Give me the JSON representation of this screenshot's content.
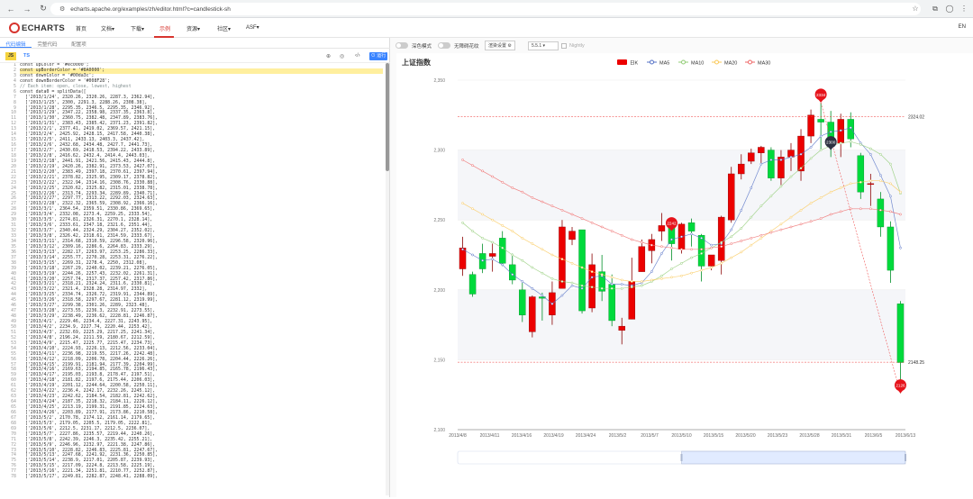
{
  "browser": {
    "url": "echarts.apache.org/examples/zh/editor.html?c=candlestick-sh"
  },
  "nav": {
    "logo": "ECHARTS",
    "items": [
      "首页",
      "文档▾",
      "下载▾",
      "示例",
      "资源▾",
      "社区▾",
      "ASF▾"
    ],
    "lang": "EN"
  },
  "editor": {
    "tabs": [
      "代码编辑",
      "完整代码",
      "配置项"
    ],
    "lang_js": "JS",
    "lang_ts": "TS",
    "run_label": "运行",
    "lines": [
      "const upColor = '#ec0000';",
      "const upBorderColor = '#8A0000';",
      "const downColor = '#00da3c';",
      "const downBorderColor = '#008F28';",
      "// Each item: open, close, lowest, highest",
      "const data0 = splitData([",
      "  ['2013/1/24', 2320.26, 2320.26, 2287.3, 2362.94],",
      "  ['2013/1/25', 2300, 2291.3, 2288.26, 2308.38],",
      "  ['2013/1/28', 2295.35, 2346.5, 2295.35, 2346.92],",
      "  ['2013/1/29', 2347.22, 2358.98, 2337.35, 2363.8],",
      "  ['2013/1/30', 2360.75, 2382.48, 2347.89, 2383.76],",
      "  ['2013/1/31', 2383.43, 2385.42, 2371.23, 2391.82],",
      "  ['2013/2/1', 2377.41, 2419.02, 2369.57, 2421.15],",
      "  ['2013/2/4', 2425.92, 2428.15, 2417.58, 2440.38],",
      "  ['2013/2/5', 2411, 2433.13, 2403.3, 2437.42],",
      "  ['2013/2/6', 2432.68, 2434.48, 2427.7, 2441.73],",
      "  ['2013/2/7', 2430.69, 2418.53, 2394.22, 2433.89],",
      "  ['2013/2/8', 2416.62, 2432.4, 2414.4, 2443.03],",
      "  ['2013/2/18', 2441.91, 2421.56, 2415.43, 2444.8],",
      "  ['2013/2/19', 2420.26, 2382.91, 2373.53, 2427.07],",
      "  ['2013/2/20', 2383.49, 2397.18, 2370.61, 2397.94],",
      "  ['2013/2/21', 2378.82, 2325.95, 2309.17, 2378.82],",
      "  ['2013/2/22', 2322.94, 2314.16, 2308.76, 2330.88],",
      "  ['2013/2/25', 2320.62, 2325.82, 2315.01, 2338.78],",
      "  ['2013/2/26', 2313.74, 2293.34, 2289.89, 2340.71],",
      "  ['2013/2/27', 2297.77, 2313.22, 2292.03, 2324.63],",
      "  ['2013/2/28', 2322.32, 2365.59, 2308.92, 2366.16],",
      "  ['2013/3/1', 2364.54, 2359.51, 2330.86, 2369.65],",
      "  ['2013/3/4', 2332.08, 2273.4, 2259.25, 2333.54],",
      "  ['2013/3/5', 2274.81, 2326.31, 2270.1, 2328.14],",
      "  ['2013/3/6', 2333.61, 2347.18, 2321.6, 2351.44],",
      "  ['2013/3/7', 2340.44, 2324.29, 2304.27, 2352.02],",
      "  ['2013/3/8', 2326.42, 2318.61, 2314.59, 2333.67],",
      "  ['2013/3/11', 2314.68, 2310.59, 2296.58, 2320.96],",
      "  ['2013/3/12', 2309.16, 2286.6, 2264.83, 2333.29],",
      "  ['2013/3/13', 2282.17, 2263.97, 2253.25, 2286.33],",
      "  ['2013/3/14', 2255.77, 2270.28, 2253.31, 2276.22],",
      "  ['2013/3/15', 2269.31, 2278.4, 2250, 2312.08],",
      "  ['2013/3/18', 2267.29, 2240.02, 2239.21, 2276.05],",
      "  ['2013/3/19', 2244.26, 2257.43, 2232.02, 2261.31],",
      "  ['2013/3/20', 2257.74, 2317.37, 2257.42, 2317.86],",
      "  ['2013/3/21', 2318.21, 2324.24, 2311.6, 2330.81],",
      "  ['2013/3/22', 2321.4, 2328.28, 2314.97, 2332],",
      "  ['2013/3/25', 2334.74, 2326.72, 2319.91, 2344.89],",
      "  ['2013/3/26', 2318.58, 2297.67, 2281.12, 2319.99],",
      "  ['2013/3/27', 2299.38, 2301.26, 2289, 2323.48],",
      "  ['2013/3/28', 2273.55, 2236.3, 2232.91, 2273.55],",
      "  ['2013/3/29', 2238.49, 2236.62, 2228.81, 2246.87],",
      "  ['2013/4/1', 2229.46, 2234.4, 2227.31, 2243.95],",
      "  ['2013/4/2', 2234.9, 2227.74, 2220.44, 2253.42],",
      "  ['2013/4/3', 2232.69, 2225.29, 2217.25, 2241.34],",
      "  ['2013/4/8', 2196.24, 2211.59, 2180.67, 2212.59],",
      "  ['2013/4/9', 2215.47, 2225.77, 2215.47, 2234.73],",
      "  ['2013/4/10', 2224.93, 2226.13, 2212.56, 2233.04],",
      "  ['2013/4/11', 2236.98, 2219.55, 2217.26, 2242.48],",
      "  ['2013/4/12', 2218.09, 2206.78, 2204.44, 2226.26],",
      "  ['2013/4/15', 2199.91, 2181.94, 2177.39, 2204.99],",
      "  ['2013/4/16', 2169.63, 2194.85, 2165.78, 2196.43],",
      "  ['2013/4/17', 2195.03, 2193.8, 2178.47, 2197.51],",
      "  ['2013/4/18', 2181.82, 2197.6, 2175.44, 2206.03],",
      "  ['2013/4/19', 2201.12, 2244.64, 2200.58, 2250.11],",
      "  ['2013/4/22', 2236.4, 2242.17, 2232.26, 2245.12],",
      "  ['2013/4/23', 2242.62, 2184.54, 2182.81, 2242.62],",
      "  ['2013/4/24', 2187.35, 2218.32, 2184.11, 2226.12],",
      "  ['2013/4/25', 2213.19, 2199.31, 2191.85, 2224.63],",
      "  ['2013/4/26', 2203.89, 2177.91, 2173.86, 2210.58],",
      "  ['2013/5/2', 2170.78, 2174.12, 2161.14, 2179.65],",
      "  ['2013/5/3', 2179.05, 2205.5, 2179.05, 2222.81],",
      "  ['2013/5/6', 2212.5, 2231.17, 2212.5, 2236.07],",
      "  ['2013/5/7', 2227.86, 2235.57, 2219.44, 2240.26],",
      "  ['2013/5/8', 2242.39, 2246.3, 2235.42, 2255.21],",
      "  ['2013/5/9', 2246.96, 2232.97, 2221.38, 2247.86],",
      "  ['2013/5/10', 2228.82, 2246.83, 2225.81, 2247.67],",
      "  ['2013/5/13', 2247.68, 2241.92, 2231.36, 2250.85],",
      "  ['2013/5/14', 2238.9, 2217.01, 2205.87, 2239.93],",
      "  ['2013/5/15', 2217.09, 2224.8, 2213.58, 2225.19],",
      "  ['2013/5/16', 2221.34, 2251.81, 2210.77, 2252.87],",
      "  ['2013/5/17', 2249.81, 2282.87, 2248.41, 2288.09],"
    ]
  },
  "controls": {
    "dark_mode": "深色模式",
    "no_animation": "无障碍花纹",
    "render": "渲染设置 ⚙",
    "version": "5.5.1 ▾",
    "nightly": "Nightly"
  },
  "chart_data": {
    "type": "candlestick",
    "title": "上证指数",
    "legend": [
      "日K",
      "MA5",
      "MA10",
      "MA20",
      "MA30"
    ],
    "colors": {
      "up": "#ec0000",
      "down": "#00da3c",
      "ma5": "#5470c6",
      "ma10": "#91cc75",
      "ma20": "#fac858",
      "ma30": "#ee6666"
    },
    "ylim": [
      2100,
      2350
    ],
    "yticks": [
      2100,
      2150,
      2200,
      2250,
      2300,
      2350
    ],
    "xticks": [
      "2013/4/8",
      "2013/4/11",
      "2013/4/16",
      "2013/4/19",
      "2013/4/24",
      "2013/5/2",
      "2013/5/7",
      "2013/5/10",
      "2013/5/15",
      "2013/5/20",
      "2013/5/23",
      "2013/5/28",
      "2013/5/31",
      "2013/6/5",
      "2013/6/13"
    ],
    "candles": [
      [
        2215,
        2230,
        2210,
        2238
      ],
      [
        2211,
        2197,
        2195,
        2213
      ],
      [
        2226,
        2215,
        2212,
        2233
      ],
      [
        2224,
        2226,
        2213,
        2233
      ],
      [
        2237,
        2219,
        2217,
        2242
      ],
      [
        2218,
        2207,
        2204,
        2226
      ],
      [
        2200,
        2182,
        2177,
        2205
      ],
      [
        2170,
        2195,
        2166,
        2196
      ],
      [
        2195,
        2194,
        2178,
        2198
      ],
      [
        2182,
        2198,
        2175,
        2206
      ],
      [
        2201,
        2245,
        2201,
        2250
      ],
      [
        2236,
        2242,
        2232,
        2245
      ],
      [
        2243,
        2185,
        2183,
        2243
      ],
      [
        2187,
        2218,
        2184,
        2226
      ],
      [
        2213,
        2199,
        2192,
        2225
      ],
      [
        2204,
        2178,
        2174,
        2211
      ],
      [
        2171,
        2174,
        2161,
        2180
      ],
      [
        2179,
        2206,
        2179,
        2223
      ],
      [
        2213,
        2231,
        2213,
        2236
      ],
      [
        2228,
        2236,
        2219,
        2240
      ],
      [
        2242,
        2246,
        2235,
        2255
      ],
      [
        2247,
        2233,
        2221,
        2248
      ],
      [
        2229,
        2247,
        2226,
        2248
      ],
      [
        2248,
        2242,
        2231,
        2251
      ],
      [
        2239,
        2217,
        2206,
        2240
      ],
      [
        2217,
        2225,
        2214,
        2225
      ],
      [
        2221,
        2252,
        2211,
        2253
      ],
      [
        2250,
        2283,
        2248,
        2288
      ],
      [
        2283,
        2290,
        2279,
        2297
      ],
      [
        2292,
        2298,
        2290,
        2301
      ],
      [
        2298,
        2302,
        2290,
        2303
      ],
      [
        2300,
        2280,
        2278,
        2302
      ],
      [
        2280,
        2295,
        2275,
        2300
      ],
      [
        2295,
        2300,
        2285,
        2305
      ],
      [
        2285,
        2310,
        2278,
        2315
      ],
      [
        2310,
        2325,
        2305,
        2329
      ],
      [
        2322,
        2320,
        2300,
        2334
      ],
      [
        2320,
        2304,
        2295,
        2328
      ],
      [
        2305,
        2322,
        2295,
        2326
      ],
      [
        2322,
        2308,
        2302,
        2327
      ],
      [
        2296,
        2270,
        2265,
        2298
      ],
      [
        2276,
        2276,
        2260,
        2283
      ],
      [
        2265,
        2245,
        2238,
        2270
      ],
      [
        2245,
        2214,
        2205,
        2249
      ],
      [
        2190,
        2148,
        2126,
        2192
      ]
    ],
    "mark_points": [
      {
        "label": "2334",
        "value": 2334
      },
      {
        "label": "2300",
        "value": 2300
      },
      {
        "label": "2242",
        "value": 2242
      },
      {
        "label": "2126",
        "value": 2126
      }
    ],
    "mark_lines": [
      {
        "label": "2324.02",
        "value": 2324.02
      },
      {
        "label": "2148.25",
        "value": 2148.25
      }
    ],
    "ma5": [
      2229,
      2225,
      2221,
      2222,
      2218,
      2211,
      2206,
      2201,
      2196,
      2190,
      2196,
      2203,
      2201,
      2209,
      2210,
      2204,
      2204,
      2203,
      2205,
      2213,
      2226,
      2236,
      2238,
      2240,
      2237,
      2232,
      2233,
      2243,
      2257,
      2273,
      2290,
      2293,
      2293,
      2295,
      2297,
      2302,
      2310,
      2313,
      2314,
      2316,
      2305,
      2297,
      2282,
      2267,
      2230
    ],
    "ma10": [
      2248,
      2242,
      2237,
      2234,
      2230,
      2225,
      2221,
      2216,
      2212,
      2208,
      2206,
      2205,
      2203,
      2202,
      2201,
      2201,
      2201,
      2202,
      2203,
      2206,
      2210,
      2215,
      2219,
      2223,
      2226,
      2230,
      2234,
      2238,
      2244,
      2252,
      2260,
      2267,
      2274,
      2281,
      2287,
      2294,
      2300,
      2303,
      2305,
      2306,
      2304,
      2301,
      2297,
      2290,
      2269
    ],
    "ma20": [
      2262,
      2258,
      2254,
      2250,
      2246,
      2242,
      2237,
      2233,
      2229,
      2225,
      2222,
      2219,
      2216,
      2213,
      2211,
      2209,
      2207,
      2206,
      2206,
      2207,
      2208,
      2209,
      2210,
      2212,
      2214,
      2216,
      2219,
      2223,
      2227,
      2232,
      2237,
      2242,
      2247,
      2252,
      2257,
      2262,
      2266,
      2270,
      2273,
      2276,
      2277,
      2278,
      2278,
      2276,
      2270
    ],
    "ma30": [
      2293,
      2289,
      2285,
      2281,
      2277,
      2273,
      2270,
      2266,
      2263,
      2260,
      2257,
      2254,
      2251,
      2248,
      2245,
      2242,
      2239,
      2236,
      2234,
      2232,
      2231,
      2230,
      2229,
      2229,
      2229,
      2230,
      2231,
      2233,
      2235,
      2237,
      2239,
      2241,
      2243,
      2245,
      2247,
      2249,
      2251,
      2254,
      2256,
      2258,
      2258,
      2258,
      2257,
      2256,
      2254
    ]
  }
}
